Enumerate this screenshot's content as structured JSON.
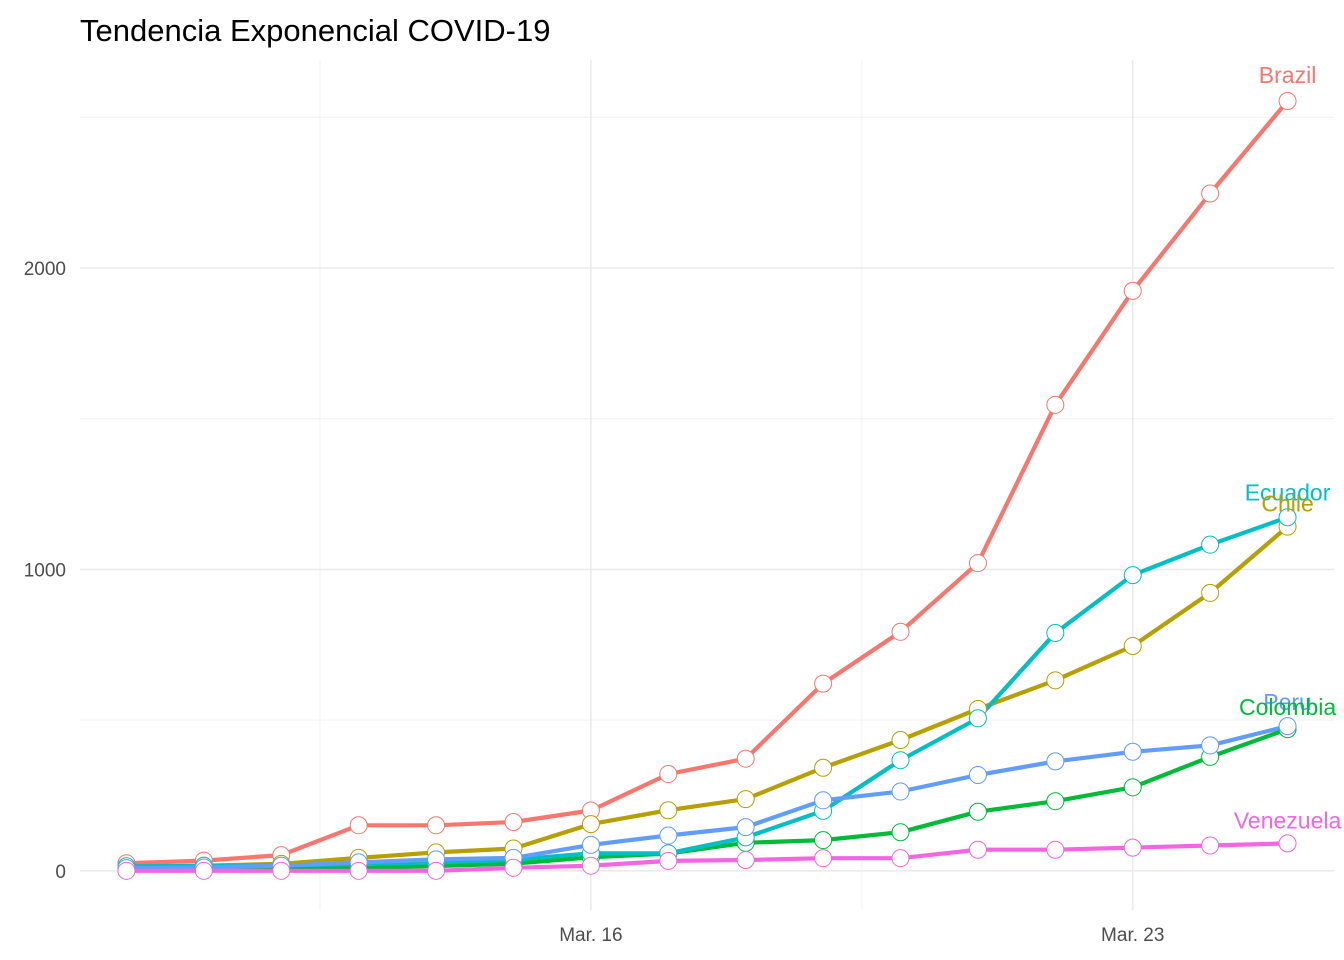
{
  "chart_data": {
    "type": "line",
    "title": "Tendencia Exponencial COVID-19",
    "xlabel": "",
    "ylabel": "",
    "x": [
      "2020-03-10",
      "2020-03-11",
      "2020-03-12",
      "2020-03-13",
      "2020-03-14",
      "2020-03-15",
      "2020-03-16",
      "2020-03-17",
      "2020-03-18",
      "2020-03-19",
      "2020-03-20",
      "2020-03-21",
      "2020-03-22",
      "2020-03-23",
      "2020-03-24",
      "2020-03-25"
    ],
    "x_ticks": [
      {
        "date": "2020-03-16",
        "label": "Mar. 16"
      },
      {
        "date": "2020-03-23",
        "label": "Mar. 23"
      }
    ],
    "x_minor_ticks": [
      "2020-03-12.5",
      "2020-03-19.5"
    ],
    "xlim": [
      "2020-03-09.4",
      "2020-03-25.6"
    ],
    "y_ticks": [
      0,
      1000,
      2000
    ],
    "y_minor_ticks": [
      500,
      1500,
      2500
    ],
    "ylim": [
      -130,
      2690
    ],
    "grid": true,
    "legend": "none",
    "series": [
      {
        "name": "Brazil",
        "color": "#F8766D",
        "values": [
          25,
          34,
          52,
          151,
          151,
          162,
          200,
          321,
          372,
          621,
          793,
          1021,
          1546,
          1924,
          2247,
          2554
        ]
      },
      {
        "name": "Chile",
        "color": "#B79F00",
        "values": [
          13,
          17,
          23,
          43,
          61,
          74,
          155,
          201,
          238,
          342,
          434,
          537,
          632,
          746,
          922,
          1142
        ]
      },
      {
        "name": "Colombia",
        "color": "#00BA38",
        "values": [
          1,
          3,
          9,
          9,
          16,
          24,
          45,
          57,
          93,
          102,
          128,
          196,
          231,
          277,
          378,
          470
        ]
      },
      {
        "name": "Ecuador",
        "color": "#00BFC4",
        "values": [
          15,
          17,
          17,
          23,
          28,
          37,
          58,
          58,
          111,
          199,
          367,
          506,
          789,
          981,
          1082,
          1173
        ]
      },
      {
        "name": "Peru",
        "color": "#619CFF",
        "values": [
          9,
          11,
          17,
          28,
          38,
          43,
          86,
          117,
          145,
          234,
          263,
          318,
          363,
          395,
          416,
          480
        ]
      },
      {
        "name": "Venezuela",
        "color": "#F564E3",
        "values": [
          0,
          0,
          0,
          0,
          0,
          10,
          17,
          33,
          36,
          42,
          42,
          70,
          70,
          77,
          84,
          91
        ]
      }
    ],
    "series_labels": [
      {
        "name": "Brazil",
        "text": "Brazil"
      },
      {
        "name": "Ecuador",
        "text": "Ecuador"
      },
      {
        "name": "Chile",
        "text": "Chile"
      },
      {
        "name": "Peru",
        "text": "Peru"
      },
      {
        "name": "Colombia",
        "text": "Colombia"
      },
      {
        "name": "Venezuela",
        "text": "Venezuela"
      }
    ],
    "marker": {
      "fill": "#ffffff",
      "outline": "series color"
    }
  }
}
